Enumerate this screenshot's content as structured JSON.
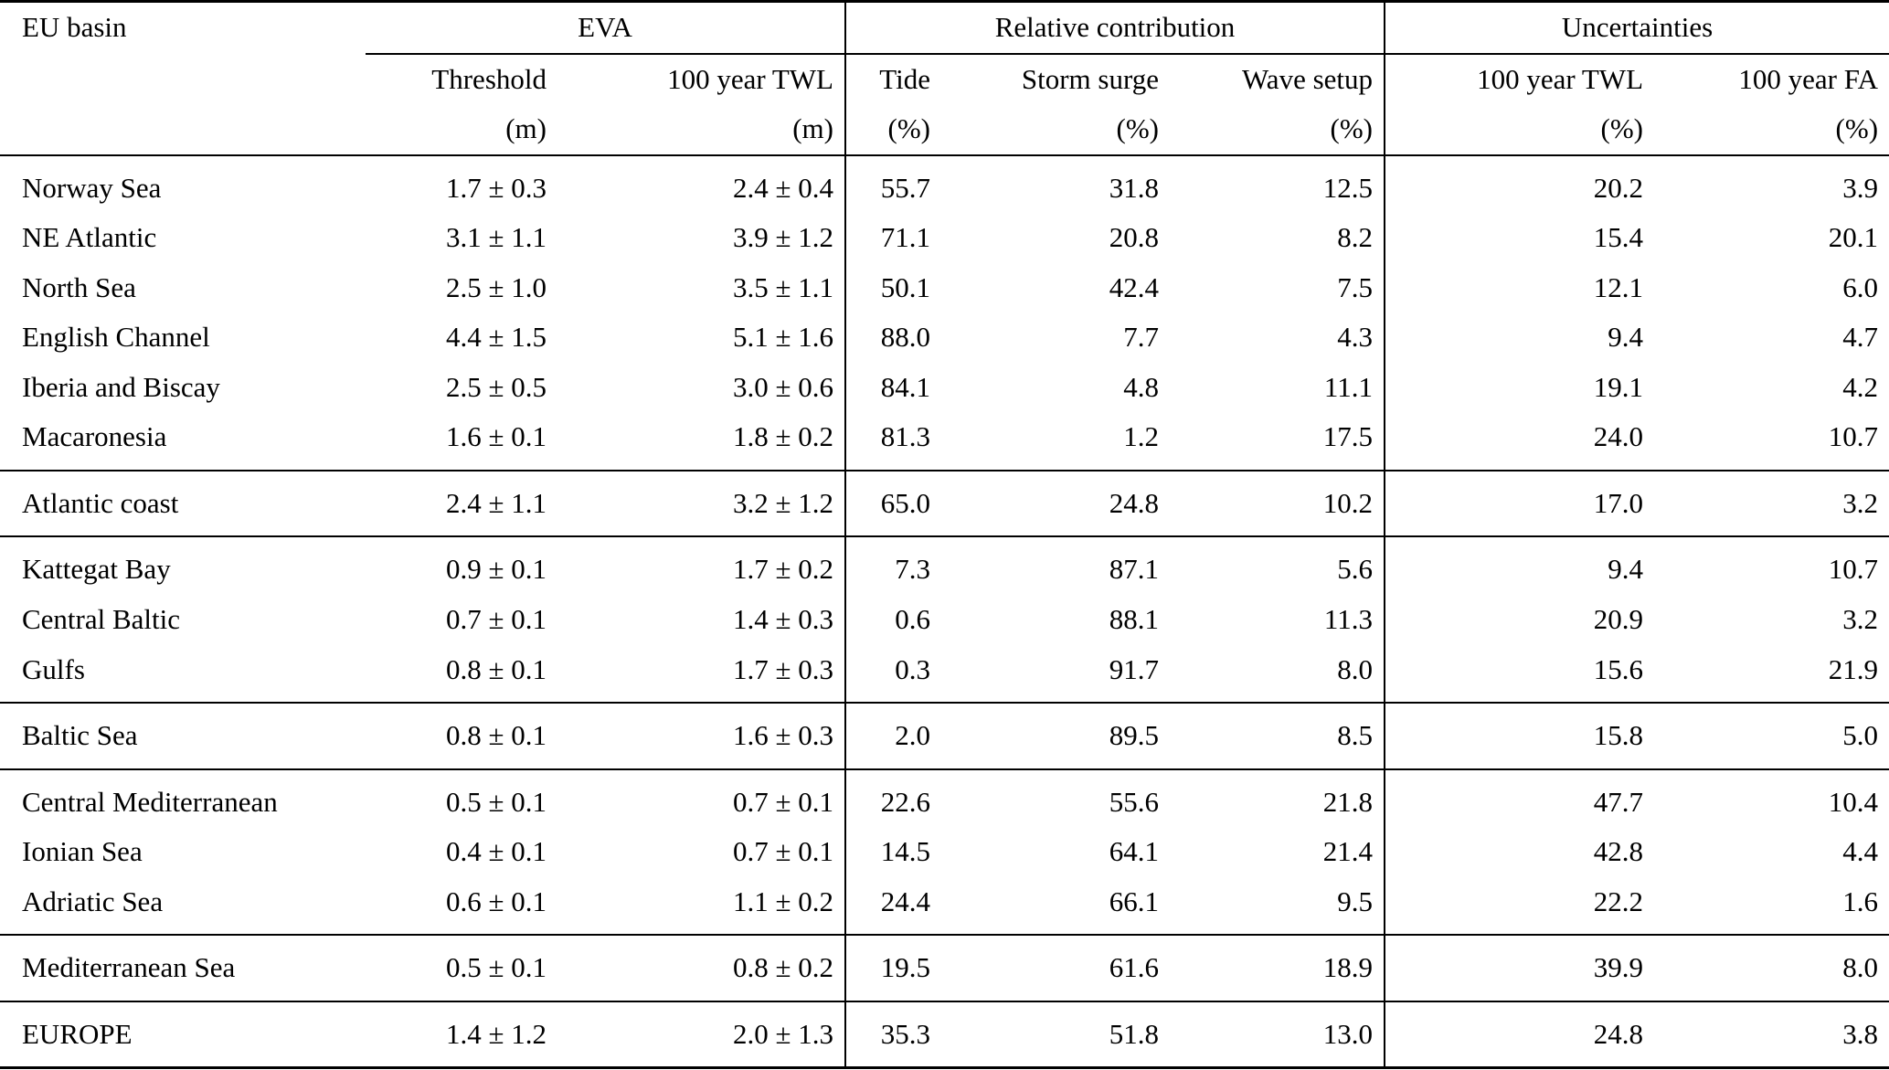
{
  "table": {
    "corner_label": "EU basin",
    "groups_header": [
      {
        "label": "EVA",
        "span": 2
      },
      {
        "label": "Relative contribution",
        "span": 3
      },
      {
        "label": "Uncertainties",
        "span": 2
      }
    ],
    "columns": [
      {
        "label": "Threshold",
        "unit": "(m)"
      },
      {
        "label": "100 year TWL",
        "unit": "(m)"
      },
      {
        "label": "Tide",
        "unit": "(%)"
      },
      {
        "label": "Storm surge",
        "unit": "(%)"
      },
      {
        "label": "Wave setup",
        "unit": "(%)"
      },
      {
        "label": "100 year TWL",
        "unit": "(%)"
      },
      {
        "label": "100 year FA",
        "unit": "(%)"
      }
    ],
    "row_groups": [
      {
        "rows": [
          {
            "basin": "Norway Sea",
            "values": [
              "1.7 ± 0.3",
              "2.4 ± 0.4",
              "55.7",
              "31.8",
              "12.5",
              "20.2",
              "3.9"
            ]
          },
          {
            "basin": "NE Atlantic",
            "values": [
              "3.1 ± 1.1",
              "3.9 ± 1.2",
              "71.1",
              "20.8",
              "8.2",
              "15.4",
              "20.1"
            ]
          },
          {
            "basin": "North Sea",
            "values": [
              "2.5 ± 1.0",
              "3.5 ± 1.1",
              "50.1",
              "42.4",
              "7.5",
              "12.1",
              "6.0"
            ]
          },
          {
            "basin": "English Channel",
            "values": [
              "4.4 ± 1.5",
              "5.1 ± 1.6",
              "88.0",
              "7.7",
              "4.3",
              "9.4",
              "4.7"
            ]
          },
          {
            "basin": "Iberia and Biscay",
            "values": [
              "2.5 ± 0.5",
              "3.0 ± 0.6",
              "84.1",
              "4.8",
              "11.1",
              "19.1",
              "4.2"
            ]
          },
          {
            "basin": "Macaronesia",
            "values": [
              "1.6 ± 0.1",
              "1.8 ± 0.2",
              "81.3",
              "1.2",
              "17.5",
              "24.0",
              "10.7"
            ]
          }
        ]
      },
      {
        "rows": [
          {
            "basin": "Atlantic coast",
            "values": [
              "2.4 ± 1.1",
              "3.2 ± 1.2",
              "65.0",
              "24.8",
              "10.2",
              "17.0",
              "3.2"
            ]
          }
        ]
      },
      {
        "rows": [
          {
            "basin": "Kattegat Bay",
            "values": [
              "0.9 ± 0.1",
              "1.7 ± 0.2",
              "7.3",
              "87.1",
              "5.6",
              "9.4",
              "10.7"
            ]
          },
          {
            "basin": "Central Baltic",
            "values": [
              "0.7 ± 0.1",
              "1.4 ± 0.3",
              "0.6",
              "88.1",
              "11.3",
              "20.9",
              "3.2"
            ]
          },
          {
            "basin": "Gulfs",
            "values": [
              "0.8 ± 0.1",
              "1.7 ± 0.3",
              "0.3",
              "91.7",
              "8.0",
              "15.6",
              "21.9"
            ]
          }
        ]
      },
      {
        "rows": [
          {
            "basin": "Baltic Sea",
            "values": [
              "0.8 ± 0.1",
              "1.6 ± 0.3",
              "2.0",
              "89.5",
              "8.5",
              "15.8",
              "5.0"
            ]
          }
        ]
      },
      {
        "rows": [
          {
            "basin": "Central Mediterranean",
            "values": [
              "0.5 ± 0.1",
              "0.7 ± 0.1",
              "22.6",
              "55.6",
              "21.8",
              "47.7",
              "10.4"
            ]
          },
          {
            "basin": "Ionian Sea",
            "values": [
              "0.4 ± 0.1",
              "0.7 ± 0.1",
              "14.5",
              "64.1",
              "21.4",
              "42.8",
              "4.4"
            ]
          },
          {
            "basin": "Adriatic Sea",
            "values": [
              "0.6 ± 0.1",
              "1.1 ± 0.2",
              "24.4",
              "66.1",
              "9.5",
              "22.2",
              "1.6"
            ]
          }
        ]
      },
      {
        "rows": [
          {
            "basin": "Mediterranean Sea",
            "values": [
              "0.5 ± 0.1",
              "0.8 ± 0.2",
              "19.5",
              "61.6",
              "18.9",
              "39.9",
              "8.0"
            ]
          }
        ]
      },
      {
        "rows": [
          {
            "basin": "EUROPE",
            "values": [
              "1.4 ± 1.2",
              "2.0 ± 1.3",
              "35.3",
              "51.8",
              "13.0",
              "24.8",
              "3.8"
            ]
          }
        ]
      }
    ]
  }
}
